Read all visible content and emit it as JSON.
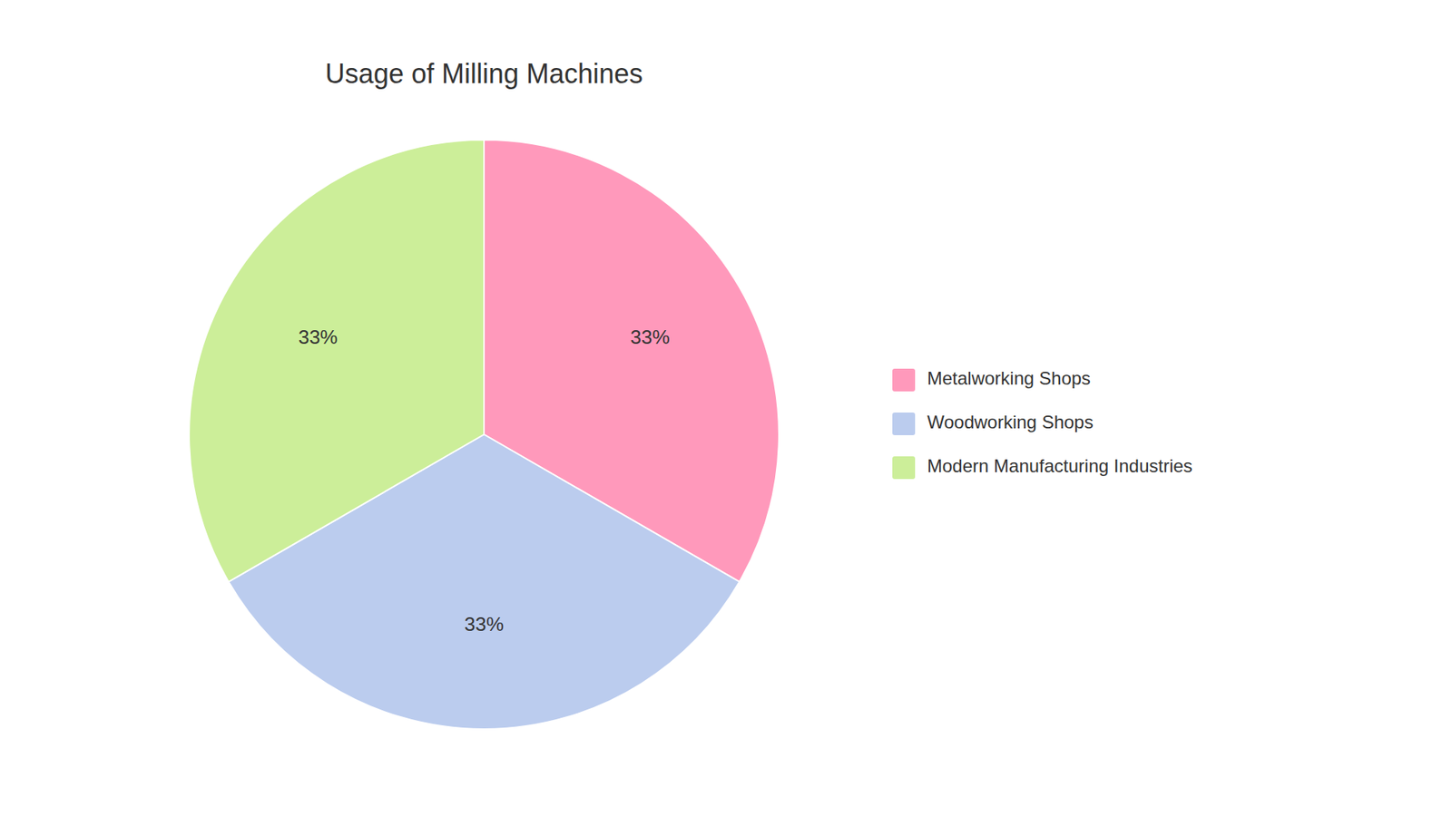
{
  "chart_data": {
    "type": "pie",
    "title": "Usage of Milling Machines",
    "categories": [
      "Metalworking Shops",
      "Woodworking Shops",
      "Modern Manufacturing Industries"
    ],
    "values": [
      33,
      33,
      33
    ],
    "value_labels": [
      "33%",
      "33%",
      "33%"
    ],
    "colors": [
      "#FF99BB",
      "#BBCCEE",
      "#CCEE99"
    ],
    "data_labels": true,
    "legend": "right"
  }
}
